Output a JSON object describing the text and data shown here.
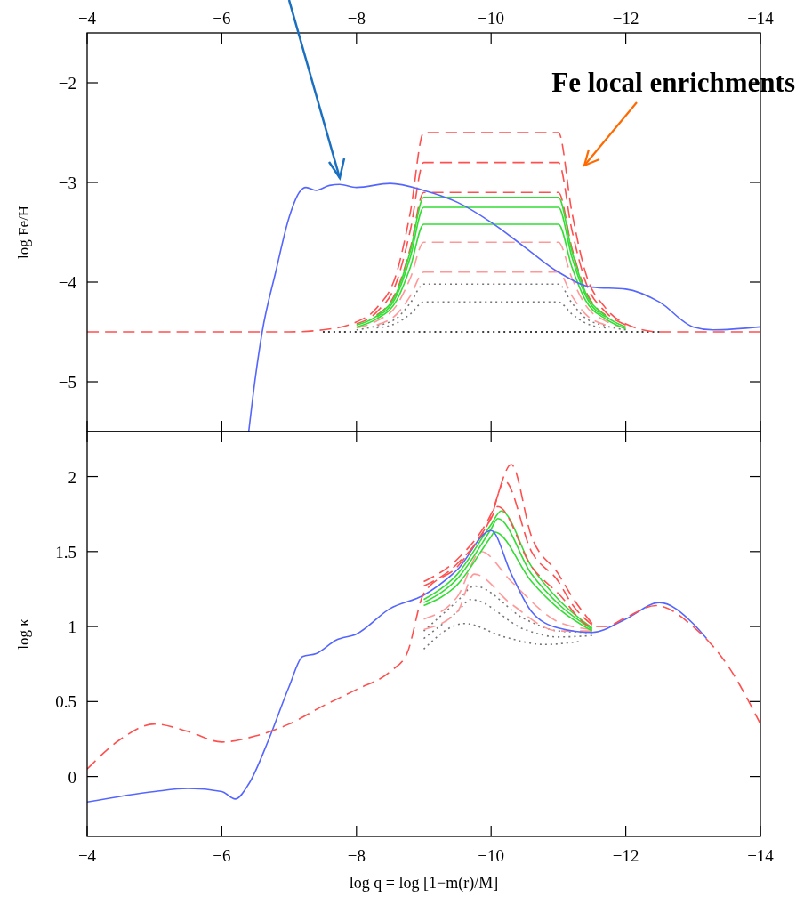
{
  "chart_data": [
    {
      "type": "line",
      "ylabel": "log Fe/H",
      "xlim": [
        -4,
        -14
      ],
      "xticks": [
        -4,
        -6,
        -8,
        -10,
        -12,
        -14
      ],
      "ylim": [
        -5.5,
        -1.5
      ],
      "yticks": [
        -5,
        -4,
        -3,
        -2
      ],
      "annotations": [
        "Fe local enrichments"
      ],
      "x": [
        -8,
        -8.3,
        -8.6,
        -8.8,
        -9,
        -11,
        -11.2,
        -11.4,
        -11.7,
        -12
      ],
      "series": [
        {
          "color": "#000000",
          "line_style": "dotted",
          "x": [
            -7.5,
            -12.5
          ],
          "values": [
            -4.5,
            -4.5
          ]
        },
        {
          "color": "#777777",
          "line_style": "dotted",
          "values": [
            -4.48,
            -4.44,
            -4.36,
            -4.21,
            -4.02,
            -4.02,
            -4.21,
            -4.36,
            -4.44,
            -4.48
          ]
        },
        {
          "color": "#777777",
          "line_style": "dotted",
          "x": [
            -8.3,
            -8.6,
            -8.8,
            -9,
            -11,
            -11.2,
            -11.4,
            -11.7
          ],
          "values": [
            -4.46,
            -4.41,
            -4.32,
            -4.2,
            -4.2,
            -4.32,
            -4.41,
            -4.46
          ]
        },
        {
          "color": "#ff5050",
          "line_style": "dashed",
          "values": [
            -4.42,
            -4.3,
            -3.99,
            -3.48,
            -2.8,
            -2.8,
            -3.48,
            -3.99,
            -4.3,
            -4.43
          ]
        },
        {
          "color": "#ff5050",
          "line_style": "dashed",
          "x": [
            -8.3,
            -8.6,
            -8.8,
            -9,
            -11,
            -11.2,
            -11.4,
            -11.7
          ],
          "values": [
            -4.33,
            -4.08,
            -3.66,
            -3.1,
            -3.1,
            -3.66,
            -4.08,
            -4.33
          ]
        },
        {
          "color": "#ff9999",
          "line_style": "dashed",
          "values": [
            -4.46,
            -4.39,
            -4.23,
            -3.96,
            -3.6,
            -3.6,
            -3.96,
            -4.23,
            -4.39,
            -4.46
          ]
        },
        {
          "color": "#ff9999",
          "line_style": "dashed",
          "x": [
            -8.3,
            -8.6,
            -8.8,
            -9,
            -11,
            -11.2,
            -11.4,
            -11.7
          ],
          "values": [
            -4.43,
            -4.32,
            -4.14,
            -3.9,
            -3.9,
            -4.14,
            -4.32,
            -4.43
          ]
        },
        {
          "color": "#33dd33",
          "line_style": "solid",
          "values": [
            -4.43,
            -4.34,
            -4.1,
            -3.69,
            -3.15,
            -3.15,
            -3.69,
            -4.1,
            -4.34,
            -4.45
          ]
        },
        {
          "color": "#33dd33",
          "line_style": "solid",
          "x": [
            -8.3,
            -8.6,
            -8.8,
            -9,
            -11,
            -11.2,
            -11.4,
            -11.7
          ],
          "values": [
            -4.35,
            -4.13,
            -3.75,
            -3.25,
            -3.25,
            -3.75,
            -4.13,
            -4.35
          ]
        },
        {
          "color": "#33dd33",
          "line_style": "solid",
          "values": [
            -4.45,
            -4.37,
            -4.18,
            -3.85,
            -3.42,
            -3.42,
            -3.85,
            -4.18,
            -4.37,
            -4.47
          ]
        },
        {
          "color": "#5566ff",
          "line_style": "solid",
          "x": [
            -6.4,
            -6.5,
            -6.6,
            -6.8,
            -7,
            -7.15,
            -7.25,
            -7.4,
            -7.6,
            -7.75,
            -8,
            -8.5,
            -9,
            -9.5,
            -10,
            -10.5,
            -11,
            -11.5,
            -12,
            -12.5,
            -13,
            -13.3,
            -14
          ],
          "values": [
            -5.5,
            -4.95,
            -4.5,
            -3.9,
            -3.35,
            -3.1,
            -3.05,
            -3.08,
            -3.03,
            -3.02,
            -3.05,
            -3.01,
            -3.08,
            -3.2,
            -3.4,
            -3.65,
            -3.9,
            -4.05,
            -4.07,
            -4.2,
            -4.45,
            -4.48,
            -4.45
          ]
        },
        {
          "color": "#ff5050",
          "line_style": "dashed",
          "x": [
            -4,
            -7,
            -7.5,
            -8,
            -8.3,
            -8.6,
            -8.8,
            -9,
            -11,
            -11.2,
            -11.4,
            -11.7,
            -12,
            -12.5,
            -14
          ],
          "values": [
            -4.5,
            -4.5,
            -4.48,
            -4.4,
            -4.26,
            -3.9,
            -3.3,
            -2.5,
            -2.5,
            -3.3,
            -3.9,
            -4.26,
            -4.42,
            -4.5,
            -4.5
          ]
        }
      ]
    },
    {
      "type": "line",
      "xlabel": "log q = log [1−m(r)/M]",
      "ylabel": "log κ",
      "xlim": [
        -4,
        -14
      ],
      "xticks": [
        -4,
        -6,
        -8,
        -10,
        -12,
        -14
      ],
      "ylim": [
        -0.4,
        2.3
      ],
      "yticks": [
        0,
        0.5,
        1,
        1.5,
        2
      ],
      "series": [
        {
          "color": "#777777",
          "line_style": "dotted",
          "x": [
            -9,
            -9.5,
            -9.75,
            -10.5,
            -11,
            -11.5
          ],
          "values": [
            0.97,
            1.17,
            1.27,
            1.05,
            0.97,
            0.96
          ]
        },
        {
          "color": "#777777",
          "line_style": "dotted",
          "x": [
            -9,
            -9.5,
            -9.7,
            -10.5,
            -11,
            -11.5
          ],
          "values": [
            0.92,
            1.1,
            1.18,
            0.98,
            0.93,
            0.94
          ]
        },
        {
          "color": "#777777",
          "line_style": "dotted",
          "x": [
            -9,
            -9.6,
            -10.2,
            -10.8,
            -11.3
          ],
          "values": [
            0.85,
            1.02,
            0.93,
            0.88,
            0.9
          ]
        },
        {
          "color": "#ff5050",
          "line_style": "dashed",
          "x": [
            -9,
            -9.5,
            -10,
            -10.3,
            -10.6,
            -11,
            -11.2,
            -11.5
          ],
          "values": [
            1.3,
            1.45,
            1.75,
            2.08,
            1.6,
            1.35,
            1.2,
            1.02
          ]
        },
        {
          "color": "#ff5050",
          "line_style": "dashed",
          "x": [
            -9,
            -9.5,
            -10,
            -10.2,
            -10.6,
            -11,
            -11.2,
            -11.5
          ],
          "values": [
            1.27,
            1.42,
            1.73,
            1.97,
            1.5,
            1.3,
            1.15,
            1.01
          ]
        },
        {
          "color": "#ff9999",
          "line_style": "dashed",
          "x": [
            -9,
            -9.5,
            -9.85,
            -10.3,
            -11,
            -11.5
          ],
          "values": [
            1.05,
            1.2,
            1.5,
            1.3,
            1.03,
            0.98
          ]
        },
        {
          "color": "#ff9999",
          "line_style": "dashed",
          "x": [
            -9,
            -9.5,
            -9.75,
            -10.3,
            -11,
            -11.5
          ],
          "values": [
            0.98,
            1.1,
            1.35,
            1.15,
            0.97,
            0.97
          ]
        },
        {
          "color": "#33dd33",
          "line_style": "solid",
          "x": [
            -9,
            -9.5,
            -10,
            -10.15,
            -10.6,
            -11,
            -11.5
          ],
          "values": [
            1.18,
            1.35,
            1.68,
            1.77,
            1.4,
            1.18,
            0.99
          ]
        },
        {
          "color": "#33dd33",
          "line_style": "solid",
          "x": [
            -9,
            -9.5,
            -10,
            -10.1,
            -10.6,
            -11,
            -11.5
          ],
          "values": [
            1.16,
            1.32,
            1.65,
            1.72,
            1.35,
            1.15,
            0.98
          ]
        },
        {
          "color": "#33dd33",
          "line_style": "solid",
          "x": [
            -9,
            -9.5,
            -10,
            -10.05,
            -10.6,
            -11,
            -11.5
          ],
          "values": [
            1.14,
            1.28,
            1.6,
            1.63,
            1.3,
            1.12,
            0.97
          ]
        },
        {
          "color": "#5566ff",
          "line_style": "solid",
          "x": [
            -4,
            -5,
            -5.5,
            -6,
            -6.2,
            -6.4,
            -6.7,
            -7,
            -7.2,
            -7.4,
            -7.7,
            -8,
            -8.5,
            -9,
            -9.5,
            -10,
            -10.3,
            -10.6,
            -11,
            -11.5,
            -12,
            -12.5,
            -13,
            -13.2
          ],
          "values": [
            -0.17,
            -0.1,
            -0.08,
            -0.1,
            -0.15,
            -0.05,
            0.25,
            0.6,
            0.8,
            0.82,
            0.91,
            0.95,
            1.12,
            1.21,
            1.38,
            1.64,
            1.35,
            1.1,
            0.99,
            0.96,
            1.05,
            1.16,
            1.02,
            0.92
          ]
        },
        {
          "color": "#ff5050",
          "line_style": "dashed",
          "x": [
            -4,
            -4.5,
            -5,
            -5.5,
            -6,
            -6.5,
            -7,
            -7.5,
            -8,
            -8.5,
            -8.75,
            -9,
            -9.5,
            -10,
            -10.1,
            -10.6,
            -11,
            -11.5,
            -11.7,
            -12,
            -12.45,
            -13,
            -13.5,
            -14
          ],
          "values": [
            0.05,
            0.25,
            0.35,
            0.3,
            0.23,
            0.27,
            0.35,
            0.47,
            0.58,
            0.7,
            0.82,
            1.22,
            1.4,
            1.72,
            1.8,
            1.4,
            1.22,
            1.0,
            1.0,
            1.06,
            1.14,
            1.0,
            0.75,
            0.35
          ]
        }
      ]
    }
  ]
}
